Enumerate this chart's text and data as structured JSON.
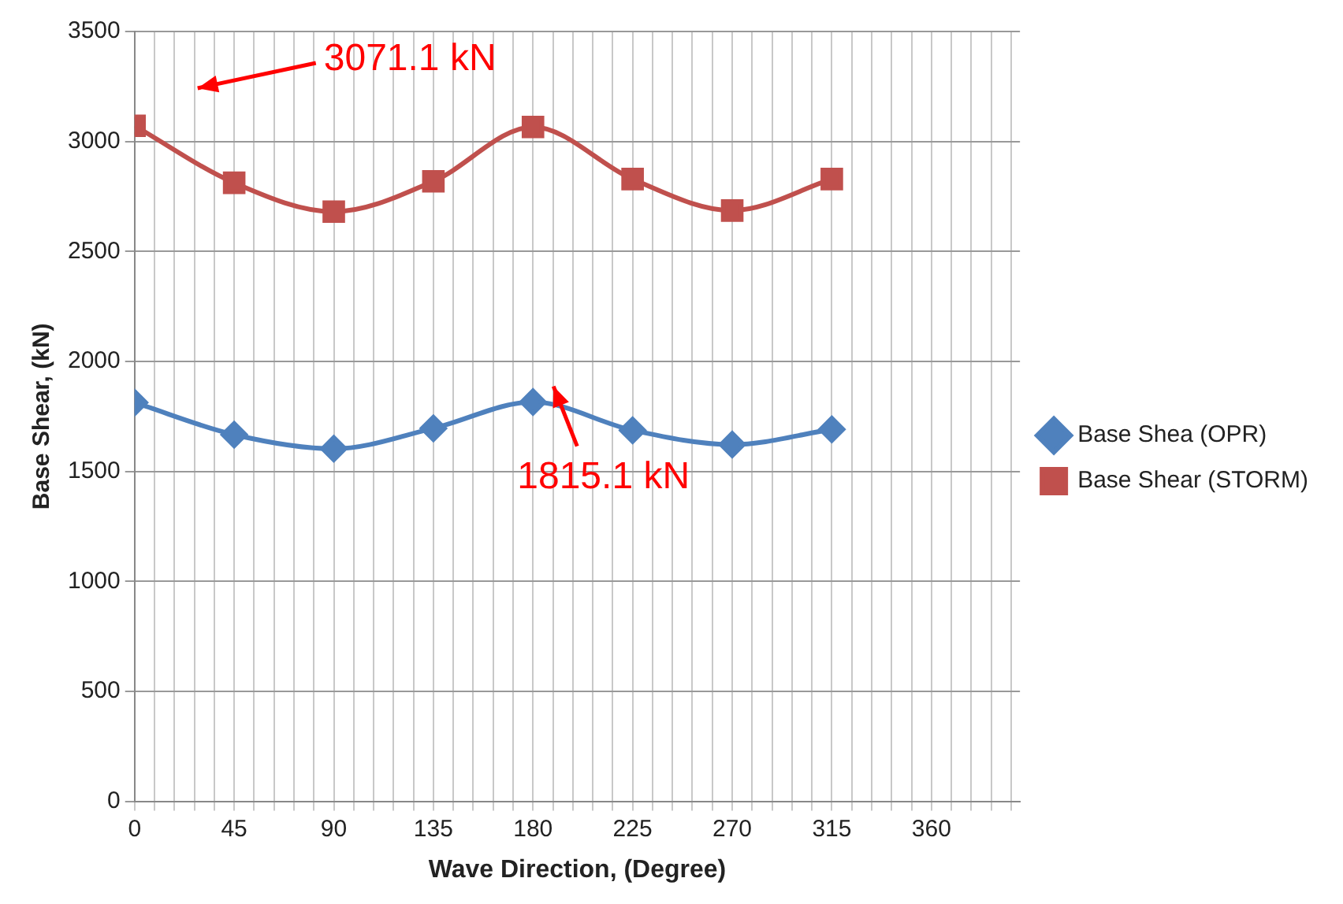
{
  "chart_data": {
    "type": "line",
    "xlabel": "Wave Direction, (Degree)",
    "ylabel": "Base Shear, (kN)",
    "x": [
      0,
      45,
      90,
      135,
      180,
      225,
      270,
      315
    ],
    "series": [
      {
        "name": "Base Shea (OPR)",
        "color": "#4f81bd",
        "marker": "diamond",
        "values": [
          1813,
          1667,
          1603,
          1696,
          1815.1,
          1687,
          1622,
          1691
        ]
      },
      {
        "name": "Base Shear (STORM)",
        "color": "#c0504d",
        "marker": "square",
        "values": [
          3071.1,
          2812,
          2681,
          2819,
          3066,
          2829,
          2686,
          2829
        ]
      }
    ],
    "xlim": [
      0,
      400
    ],
    "xticks": [
      0,
      {
        "value": 9,
        "label": null
      },
      {
        "value": 18,
        "label": null
      },
      {
        "value": 27,
        "label": null
      },
      {
        "value": 36,
        "label": null
      },
      45,
      {
        "value": 54,
        "label": null
      },
      {
        "value": 63,
        "label": null
      },
      {
        "value": 72,
        "label": null
      },
      {
        "value": 81,
        "label": null
      },
      90,
      {
        "value": 99,
        "label": null
      },
      {
        "value": 108,
        "label": null
      },
      {
        "value": 117,
        "label": null
      },
      {
        "value": 126,
        "label": null
      },
      135,
      {
        "value": 144,
        "label": null
      },
      {
        "value": 153,
        "label": null
      },
      {
        "value": 162,
        "label": null
      },
      {
        "value": 171,
        "label": null
      },
      180,
      {
        "value": 189,
        "label": null
      },
      {
        "value": 198,
        "label": null
      },
      {
        "value": 207,
        "label": null
      },
      {
        "value": 216,
        "label": null
      },
      225,
      {
        "value": 234,
        "label": null
      },
      {
        "value": 243,
        "label": null
      },
      {
        "value": 252,
        "label": null
      },
      {
        "value": 261,
        "label": null
      },
      270,
      {
        "value": 279,
        "label": null
      },
      {
        "value": 288,
        "label": null
      },
      {
        "value": 297,
        "label": null
      },
      {
        "value": 306,
        "label": null
      },
      315,
      {
        "value": 324,
        "label": null
      },
      {
        "value": 333,
        "label": null
      },
      {
        "value": 342,
        "label": null
      },
      {
        "value": 351,
        "label": null
      },
      360,
      {
        "value": 369,
        "label": null
      },
      {
        "value": 378,
        "label": null
      },
      {
        "value": 387,
        "label": null
      },
      {
        "value": 396,
        "label": null
      }
    ],
    "ylim": [
      0,
      3500
    ],
    "yticks": [
      0,
      500,
      1000,
      1500,
      2000,
      2500,
      3000,
      3500
    ],
    "grid": true,
    "legend": "right",
    "line_style": "solid",
    "annotations": [
      "3071.1 kN",
      {
        "text": "1815.1 kN",
        "x": 180,
        "y": 1815.1
      }
    ]
  }
}
